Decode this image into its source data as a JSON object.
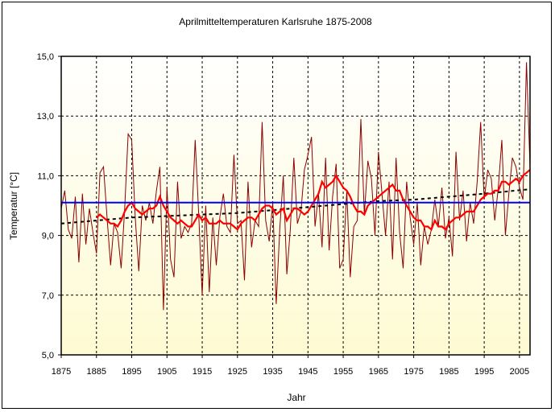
{
  "chart_data": {
    "type": "line",
    "title": "Aprilmitteltemperaturen Karlsruhe 1875-2008",
    "xlabel": "Jahr",
    "ylabel": "Temperatur [°C]",
    "xlim": [
      1875,
      2008
    ],
    "ylim": [
      5.0,
      15.0
    ],
    "xticks": [
      1875,
      1885,
      1895,
      1905,
      1915,
      1925,
      1935,
      1945,
      1955,
      1965,
      1975,
      1985,
      1995,
      2005
    ],
    "yticks": [
      "5,0",
      "7,0",
      "9,0",
      "11,0",
      "13,0",
      "15,0"
    ],
    "grid": true,
    "legend": "none",
    "series": [
      {
        "kind": "annual",
        "color": "#8b0000",
        "x": [
          1875,
          1876,
          1877,
          1878,
          1879,
          1880,
          1881,
          1882,
          1883,
          1884,
          1885,
          1886,
          1887,
          1888,
          1889,
          1890,
          1891,
          1892,
          1893,
          1894,
          1895,
          1896,
          1897,
          1898,
          1899,
          1900,
          1901,
          1902,
          1903,
          1904,
          1905,
          1906,
          1907,
          1908,
          1909,
          1910,
          1911,
          1912,
          1913,
          1914,
          1915,
          1916,
          1917,
          1918,
          1919,
          1920,
          1921,
          1922,
          1923,
          1924,
          1925,
          1926,
          1927,
          1928,
          1929,
          1930,
          1931,
          1932,
          1933,
          1934,
          1935,
          1936,
          1937,
          1938,
          1939,
          1940,
          1941,
          1942,
          1943,
          1944,
          1945,
          1946,
          1947,
          1948,
          1949,
          1950,
          1951,
          1952,
          1953,
          1954,
          1955,
          1956,
          1957,
          1958,
          1959,
          1960,
          1961,
          1962,
          1963,
          1964,
          1965,
          1966,
          1967,
          1968,
          1969,
          1970,
          1971,
          1972,
          1973,
          1974,
          1975,
          1976,
          1977,
          1978,
          1979,
          1980,
          1981,
          1982,
          1983,
          1984,
          1985,
          1986,
          1987,
          1988,
          1989,
          1990,
          1991,
          1992,
          1993,
          1994,
          1995,
          1996,
          1997,
          1998,
          1999,
          2000,
          2001,
          2002,
          2003,
          2004,
          2005,
          2006,
          2007,
          2008
        ],
        "values": [
          9.9,
          10.5,
          9.2,
          8.9,
          10.3,
          8.1,
          10.4,
          8.7,
          9.9,
          9.1,
          8.4,
          11.1,
          11.3,
          9.6,
          8.0,
          9.4,
          9.1,
          7.9,
          9.9,
          12.4,
          12.2,
          9.6,
          7.8,
          10.0,
          9.5,
          10.1,
          9.4,
          10.5,
          11.3,
          6.5,
          10.6,
          8.2,
          7.6,
          10.8,
          8.9,
          9.3,
          9.1,
          9.4,
          12.2,
          9.7,
          7.0,
          10.0,
          7.1,
          9.6,
          8.0,
          9.6,
          10.4,
          9.3,
          9.1,
          11.7,
          9.4,
          9.5,
          7.5,
          10.8,
          8.6,
          9.5,
          9.3,
          12.8,
          9.5,
          8.8,
          10.1,
          6.7,
          9.2,
          11.0,
          7.7,
          9.2,
          11.6,
          9.4,
          9.8,
          11.2,
          11.7,
          12.3,
          9.3,
          10.4,
          8.6,
          11.6,
          8.5,
          10.3,
          11.4,
          7.9,
          8.2,
          10.5,
          7.6,
          9.3,
          9.5,
          12.9,
          9.7,
          11.5,
          10.9,
          9.0,
          11.8,
          10.4,
          9.0,
          10.8,
          8.2,
          11.6,
          9.1,
          7.9,
          10.8,
          9.6,
          8.7,
          10.1,
          8.0,
          9.3,
          8.7,
          9.2,
          10.2,
          9.3,
          10.6,
          8.9,
          9.6,
          8.3,
          11.8,
          9.5,
          10.5,
          8.8,
          10.1,
          9.4,
          10.8,
          12.8,
          10.2,
          11.2,
          10.9,
          9.5,
          10.6,
          12.2,
          9.0,
          10.4,
          11.6,
          11.3,
          10.6,
          10.2,
          14.8,
          11.3
        ]
      },
      {
        "kind": "moving-average",
        "color": "#ff0000",
        "x": [
          1885,
          1886,
          1887,
          1888,
          1889,
          1890,
          1891,
          1892,
          1893,
          1894,
          1895,
          1896,
          1897,
          1898,
          1899,
          1900,
          1901,
          1902,
          1903,
          1904,
          1905,
          1906,
          1907,
          1908,
          1909,
          1910,
          1911,
          1912,
          1913,
          1914,
          1915,
          1916,
          1917,
          1918,
          1919,
          1920,
          1921,
          1922,
          1923,
          1924,
          1925,
          1926,
          1927,
          1928,
          1929,
          1930,
          1931,
          1932,
          1933,
          1934,
          1935,
          1936,
          1937,
          1938,
          1939,
          1940,
          1941,
          1942,
          1943,
          1944,
          1945,
          1946,
          1947,
          1948,
          1949,
          1950,
          1951,
          1952,
          1953,
          1954,
          1955,
          1956,
          1957,
          1958,
          1959,
          1960,
          1961,
          1962,
          1963,
          1964,
          1965,
          1966,
          1967,
          1968,
          1969,
          1970,
          1971,
          1972,
          1973,
          1974,
          1975,
          1976,
          1977,
          1978,
          1979,
          1980,
          1981,
          1982,
          1983,
          1984,
          1985,
          1986,
          1987,
          1988,
          1989,
          1990,
          1991,
          1992,
          1993,
          1994,
          1995,
          1996,
          1997,
          1998,
          1999,
          2000,
          2001,
          2002,
          2003,
          2004,
          2005,
          2006,
          2007,
          2008
        ],
        "values": [
          9.6,
          9.7,
          9.6,
          9.5,
          9.4,
          9.4,
          9.3,
          9.5,
          9.8,
          10.0,
          10.1,
          9.9,
          9.8,
          9.7,
          9.8,
          9.9,
          9.9,
          10.0,
          10.3,
          10.0,
          9.8,
          9.6,
          9.5,
          9.4,
          9.5,
          9.4,
          9.3,
          9.3,
          9.5,
          9.7,
          9.5,
          9.6,
          9.4,
          9.4,
          9.4,
          9.5,
          9.4,
          9.4,
          9.4,
          9.3,
          9.2,
          9.4,
          9.5,
          9.6,
          9.6,
          9.5,
          9.7,
          9.9,
          10.0,
          10.0,
          9.9,
          9.7,
          9.8,
          9.9,
          9.5,
          9.7,
          9.9,
          9.9,
          9.8,
          9.7,
          9.8,
          10.0,
          10.2,
          10.4,
          10.8,
          10.6,
          10.7,
          10.8,
          11.0,
          10.8,
          10.6,
          10.5,
          10.3,
          10.0,
          9.8,
          9.8,
          9.7,
          10.0,
          10.1,
          10.2,
          10.3,
          10.4,
          10.5,
          10.6,
          10.7,
          10.5,
          10.5,
          10.2,
          10.0,
          9.8,
          9.6,
          9.5,
          9.5,
          9.3,
          9.3,
          9.2,
          9.5,
          9.3,
          9.3,
          9.2,
          9.4,
          9.5,
          9.6,
          9.6,
          9.7,
          9.8,
          9.8,
          9.8,
          10.0,
          10.2,
          10.3,
          10.4,
          10.4,
          10.5,
          10.5,
          10.8,
          10.8,
          10.7,
          10.8,
          10.9,
          10.8,
          11.0,
          11.1,
          11.2
        ]
      },
      {
        "kind": "trend",
        "color": "#000000",
        "dashed": true,
        "x": [
          1875,
          1885,
          1895,
          1905,
          1915,
          1925,
          1935,
          1945,
          1955,
          1965,
          1975,
          1985,
          1995,
          2008
        ],
        "values": [
          9.4,
          9.5,
          9.6,
          9.65,
          9.7,
          9.75,
          9.85,
          9.95,
          10.05,
          10.15,
          10.2,
          10.3,
          10.4,
          10.55
        ]
      },
      {
        "kind": "mean",
        "color": "#0000ff",
        "x": [
          1875,
          2008
        ],
        "values": [
          10.1,
          10.1
        ]
      }
    ]
  }
}
